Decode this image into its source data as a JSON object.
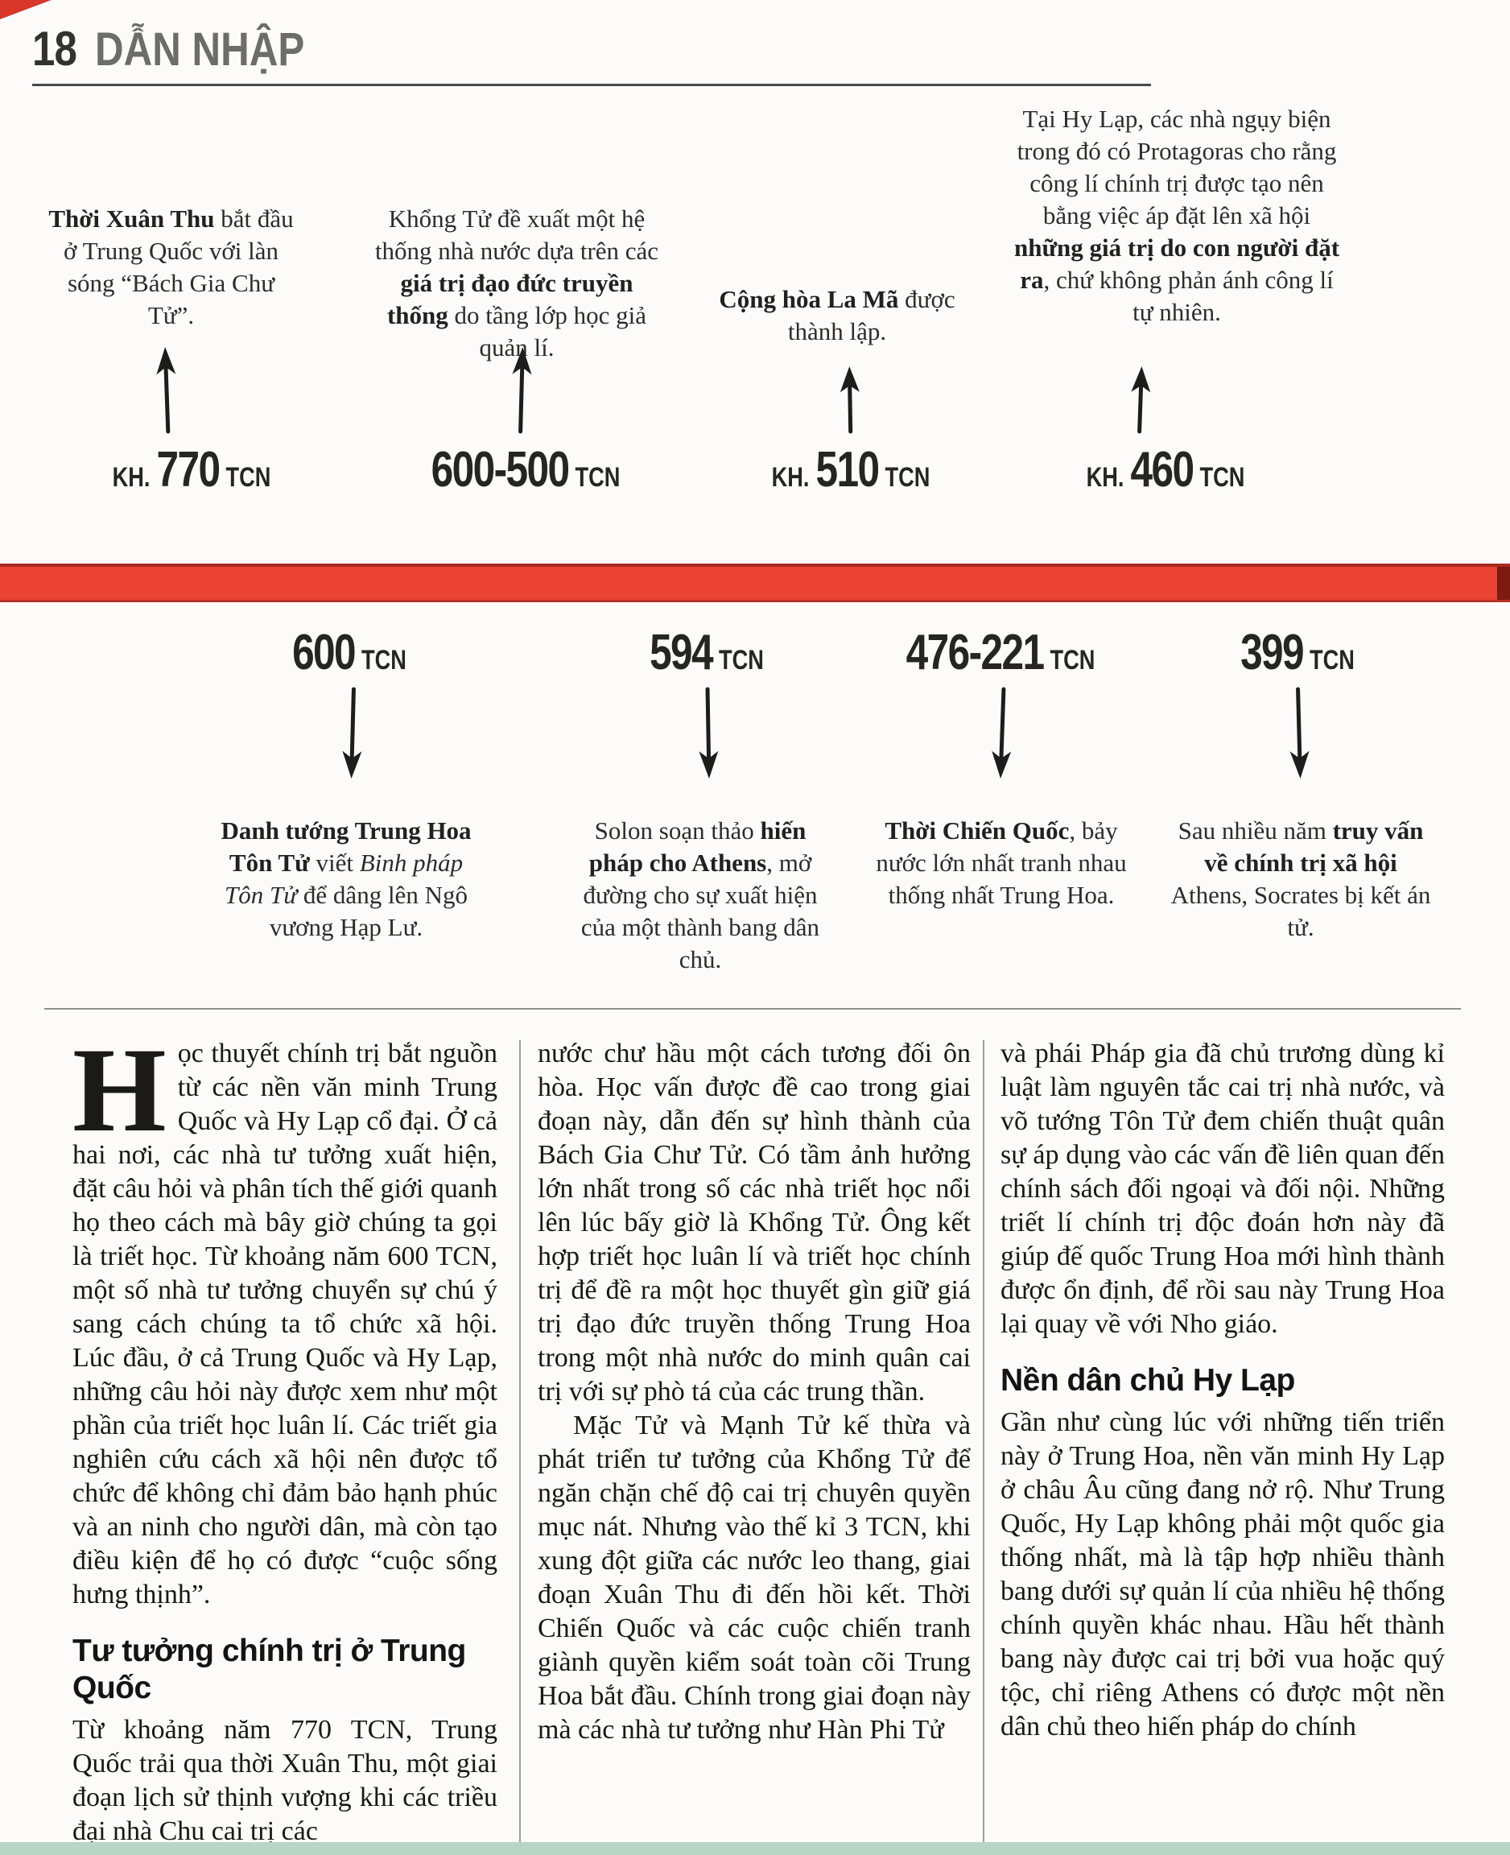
{
  "page": {
    "number": "18",
    "section": "DẪN NHẬP"
  },
  "colors": {
    "timeline_bar": "#ea4233",
    "timeline_bar_cap": "#7c1b12",
    "footer_strip": "#b7d6c6"
  },
  "timeline": {
    "top_events": [
      {
        "date_prefix": "KH.",
        "date_number": "770",
        "date_suffix": "TCN",
        "text": [
          {
            "t": "Thời Xuân Thu",
            "b": true
          },
          {
            "t": " bắt đầu ở Trung Quốc với làn sóng “Bách Gia Chư Tử”."
          }
        ]
      },
      {
        "date_prefix": "",
        "date_number": "600-500",
        "date_suffix": "TCN",
        "text": [
          {
            "t": "Khổng Tử đề xuất một hệ thống nhà nước dựa trên các "
          },
          {
            "t": "giá trị đạo đức truyền thống",
            "b": true
          },
          {
            "t": " do tầng lớp học giả quản lí."
          }
        ]
      },
      {
        "date_prefix": "KH.",
        "date_number": "510",
        "date_suffix": "TCN",
        "text": [
          {
            "t": "Cộng hòa La Mã",
            "b": true
          },
          {
            "t": " được thành lập."
          }
        ]
      },
      {
        "date_prefix": "KH.",
        "date_number": "460",
        "date_suffix": "TCN",
        "text": [
          {
            "t": "Tại Hy Lạp, các nhà ngụy biện trong đó có Protagoras cho rằng công lí chính trị được tạo nên bằng việc áp đặt lên xã hội "
          },
          {
            "t": "những giá trị do con người đặt ra",
            "b": true
          },
          {
            "t": ", chứ không phản ánh công lí tự nhiên."
          }
        ]
      }
    ],
    "bottom_events": [
      {
        "date_prefix": "",
        "date_number": "600",
        "date_suffix": "TCN",
        "text": [
          {
            "t": "Danh tướng Trung Hoa Tôn Tử",
            "b": true
          },
          {
            "t": " viết "
          },
          {
            "t": "Binh pháp Tôn Tử",
            "i": true
          },
          {
            "t": " để dâng lên Ngô vương Hạp Lư."
          }
        ]
      },
      {
        "date_prefix": "",
        "date_number": "594",
        "date_suffix": "TCN",
        "text": [
          {
            "t": "Solon soạn thảo "
          },
          {
            "t": "hiến pháp cho Athens",
            "b": true
          },
          {
            "t": ", mở đường cho sự xuất hiện của một thành bang dân chủ."
          }
        ]
      },
      {
        "date_prefix": "",
        "date_number": "476-221",
        "date_suffix": "TCN",
        "text": [
          {
            "t": "Thời Chiến Quốc",
            "b": true
          },
          {
            "t": ", bảy nước lớn nhất tranh nhau thống nhất Trung Hoa."
          }
        ]
      },
      {
        "date_prefix": "",
        "date_number": "399",
        "date_suffix": "TCN",
        "text": [
          {
            "t": "Sau nhiều năm "
          },
          {
            "t": "truy vấn về chính trị xã hội",
            "b": true
          },
          {
            "t": " Athens, Socrates bị kết án tử."
          }
        ]
      }
    ]
  },
  "body": {
    "columns": [
      {
        "blocks": [
          {
            "type": "para",
            "dropcap": "H",
            "text": "ọc thuyết chính trị bắt nguồn từ các nền văn minh Trung Quốc và Hy Lạp cổ đại. Ở cả hai nơi, các nhà tư tưởng xuất hiện, đặt câu hỏi và phân tích thế giới quanh họ theo cách mà bây giờ chúng ta gọi là triết học. Từ khoảng năm 600 TCN, một số nhà tư tưởng chuyển sự chú ý sang cách chúng ta tổ chức xã hội. Lúc đầu, ở cả Trung Quốc và Hy Lạp, những câu hỏi này được xem như một phần của triết học luân lí. Các triết gia nghiên cứu cách xã hội nên được tổ chức để không chỉ đảm bảo hạnh phúc và an ninh cho người dân, mà còn tạo điều kiện để họ có được “cuộc sống hưng thịnh”."
          },
          {
            "type": "subhead",
            "text": "Tư tưởng chính trị ở Trung Quốc"
          },
          {
            "type": "para",
            "text": "Từ khoảng năm 770 TCN, Trung Quốc trải qua thời Xuân Thu, một giai đoạn lịch sử thịnh vượng khi các triều đại nhà Chu cai trị các"
          }
        ]
      },
      {
        "blocks": [
          {
            "type": "para",
            "text": "nước chư hầu một cách tương đối ôn hòa. Học vấn được đề cao trong giai đoạn này, dẫn đến sự hình thành của Bách Gia Chư Tử. Có tầm ảnh hưởng lớn nhất trong số các nhà triết học nổi lên lúc bấy giờ là Khổng Tử. Ông kết hợp triết học luân lí và triết học chính trị để đề ra một học thuyết gìn giữ giá trị đạo đức truyền thống Trung Hoa trong một nhà nước do minh quân cai trị với sự phò tá của các trung thần."
          },
          {
            "type": "para",
            "indent": true,
            "text": "Mặc Tử và Mạnh Tử kế thừa và phát triển tư tưởng của Khổng Tử để ngăn chặn chế độ cai trị chuyên quyền mục nát. Nhưng vào thế kỉ 3 TCN, khi xung đột giữa các nước leo thang, giai đoạn Xuân Thu đi đến hồi kết. Thời Chiến Quốc và các cuộc chiến tranh giành quyền kiểm soát toàn cõi Trung Hoa bắt đầu. Chính trong giai đoạn này mà các nhà tư tưởng như Hàn Phi Tử"
          }
        ]
      },
      {
        "blocks": [
          {
            "type": "para",
            "text": "và phái Pháp gia đã chủ trương dùng kỉ luật làm nguyên tắc cai trị nhà nước, và võ tướng Tôn Tử đem chiến thuật quân sự áp dụng vào các vấn đề liên quan đến chính sách đối ngoại và đối nội. Những triết lí chính trị độc đoán hơn này đã giúp đế quốc Trung Hoa mới hình thành được ổn định, để rồi sau này Trung Hoa lại quay về với Nho giáo."
          },
          {
            "type": "subhead",
            "text": "Nền dân chủ Hy Lạp"
          },
          {
            "type": "para",
            "text": "Gần như cùng lúc với những tiến triển này ở Trung Hoa, nền văn minh Hy Lạp ở châu Âu cũng đang nở rộ. Như Trung Quốc, Hy Lạp không phải một quốc gia thống nhất, mà là tập hợp nhiều thành bang dưới sự quản lí của nhiều hệ thống chính quyền khác nhau. Hầu hết thành bang này được cai trị bởi vua hoặc quý tộc, chỉ riêng Athens có được một nền dân chủ theo hiến pháp do chính"
          }
        ]
      }
    ]
  }
}
